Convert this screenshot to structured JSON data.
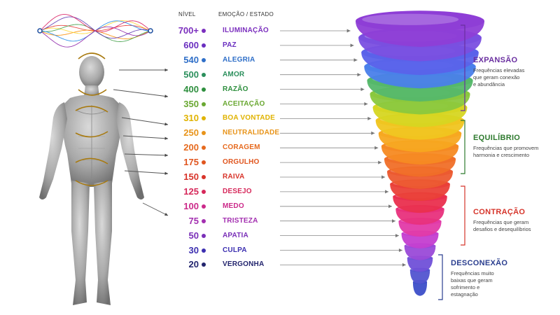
{
  "headers": {
    "level": "NÍVEL",
    "emotion": "EMOÇÃO / ESTADO"
  },
  "levels": [
    {
      "value": "700+",
      "name": "ILUMINAÇÃO",
      "color": "#7b2fbe"
    },
    {
      "value": "600",
      "name": "PAZ",
      "color": "#6a2fc0"
    },
    {
      "value": "540",
      "name": "ALEGRIA",
      "color": "#2f6fc8"
    },
    {
      "value": "500",
      "name": "AMOR",
      "color": "#2b8f5c"
    },
    {
      "value": "400",
      "name": "RAZÃO",
      "color": "#2e8f3e"
    },
    {
      "value": "350",
      "name": "ACEITAÇÃO",
      "color": "#6aa832"
    },
    {
      "value": "310",
      "name": "BOA VONTADE",
      "color": "#e0b300"
    },
    {
      "value": "250",
      "name": "NEUTRALIDADE",
      "color": "#e8941a"
    },
    {
      "value": "200",
      "name": "CORAGEM",
      "color": "#e66a1e"
    },
    {
      "value": "175",
      "name": "ORGULHO",
      "color": "#e0551e"
    },
    {
      "value": "150",
      "name": "RAIVA",
      "color": "#d8342a"
    },
    {
      "value": "125",
      "name": "DESEJO",
      "color": "#d6285a"
    },
    {
      "value": "100",
      "name": "MEDO",
      "color": "#cc2a8a"
    },
    {
      "value": "75",
      "name": "TRISTEZA",
      "color": "#a32fb0"
    },
    {
      "value": "50",
      "name": "APATIA",
      "color": "#7a2fb8"
    },
    {
      "value": "30",
      "name": "CULPA",
      "color": "#3c2fb0"
    },
    {
      "value": "20",
      "name": "VERGONHA",
      "color": "#23256e"
    }
  ],
  "funnel_colors": [
    "#8e3ed6",
    "#7a4fe0",
    "#5a62ea",
    "#4a80ea",
    "#55b86a",
    "#8ac83e",
    "#d6d622",
    "#f0c520",
    "#f7a820",
    "#f58a22",
    "#f06f28",
    "#ec5a30",
    "#ea4038",
    "#ea2f4e",
    "#e8307c",
    "#e23aa8",
    "#c43ed0",
    "#9a4ad8",
    "#7050d8",
    "#5254d0",
    "#3c4ec8"
  ],
  "groups": [
    {
      "title": "EXPANSÃO",
      "color": "#6a2fa0",
      "desc": [
        "Frequências elevadas",
        "que geram conexão",
        "e abundância"
      ]
    },
    {
      "title": "EQUILÍBRIO",
      "color": "#2e7a2e",
      "desc": [
        "Frequências que promovem",
        "harmonia e crescimento"
      ]
    },
    {
      "title": "CONTRAÇÃO",
      "color": "#d6342a",
      "desc": [
        "Frequências que geram",
        "desafios e desequilíbrios"
      ]
    },
    {
      "title": "DESCONEXÃO",
      "color": "#2a3e8f",
      "desc": [
        "Frequências muito",
        "baixas que geram",
        "sofrimento e",
        "estagnação"
      ]
    }
  ]
}
